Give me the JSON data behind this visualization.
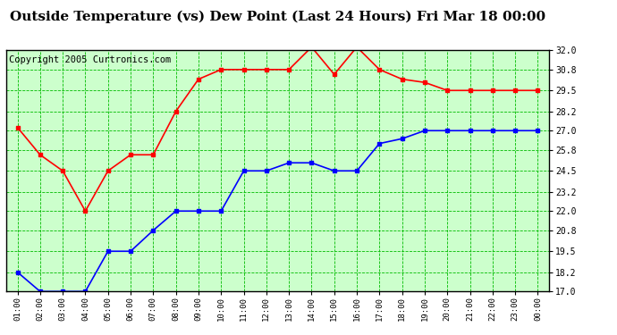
{
  "title": "Outside Temperature (vs) Dew Point (Last 24 Hours) Fri Mar 18 00:00",
  "copyright": "Copyright 2005 Curtronics.com",
  "x_labels": [
    "01:00",
    "02:00",
    "03:00",
    "04:00",
    "05:00",
    "06:00",
    "07:00",
    "08:00",
    "09:00",
    "10:00",
    "11:00",
    "12:00",
    "13:00",
    "14:00",
    "15:00",
    "16:00",
    "17:00",
    "18:00",
    "19:00",
    "20:00",
    "21:00",
    "22:00",
    "23:00",
    "00:00"
  ],
  "red_data": [
    27.2,
    25.5,
    24.5,
    22.0,
    24.5,
    25.5,
    25.5,
    28.2,
    30.2,
    30.8,
    30.8,
    30.8,
    30.8,
    32.2,
    30.5,
    32.2,
    30.8,
    30.2,
    30.0,
    29.5,
    29.5,
    29.5,
    29.5,
    29.5
  ],
  "blue_data": [
    18.2,
    17.0,
    17.0,
    17.0,
    19.5,
    19.5,
    20.8,
    22.0,
    22.0,
    22.0,
    24.5,
    24.5,
    25.0,
    25.0,
    24.5,
    24.5,
    26.2,
    26.5,
    27.0,
    27.0,
    27.0,
    27.0,
    27.0,
    27.0
  ],
  "y_ticks": [
    17.0,
    18.2,
    19.5,
    20.8,
    22.0,
    23.2,
    24.5,
    25.8,
    27.0,
    28.2,
    29.5,
    30.8,
    32.0
  ],
  "ylim": [
    17.0,
    32.0
  ],
  "background_color": "#ffffff",
  "plot_bg_color": "#ccffcc",
  "red_color": "#ff0000",
  "blue_color": "#0000ff",
  "green_grid_color": "#00bb00",
  "title_fontsize": 11,
  "copyright_fontsize": 7.5
}
